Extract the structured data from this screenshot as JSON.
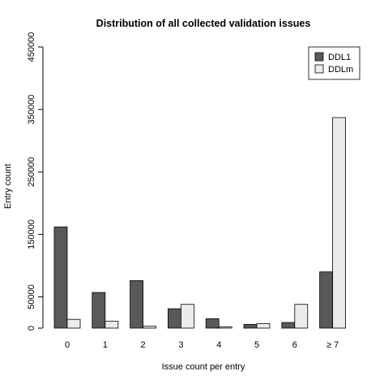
{
  "chart_data": {
    "type": "bar",
    "title": "Distribution of all collected validation issues",
    "xlabel": "Issue count per entry",
    "ylabel": "Entry count",
    "categories": [
      "0",
      "1",
      "2",
      "3",
      "4",
      "5",
      "6",
      "≥ 7"
    ],
    "series": [
      {
        "name": "DDL1",
        "color": "#595959",
        "values": [
          162000,
          57000,
          76000,
          31000,
          15000,
          6000,
          9000,
          90000
        ]
      },
      {
        "name": "DDLm",
        "color": "#ebebeb",
        "values": [
          14000,
          11000,
          3000,
          38000,
          2000,
          7000,
          38000,
          337000
        ]
      }
    ],
    "yticks": [
      0,
      50000,
      150000,
      250000,
      350000,
      450000
    ],
    "ylim": [
      0,
      450000
    ],
    "grid": false,
    "legend_position": "top-right"
  }
}
